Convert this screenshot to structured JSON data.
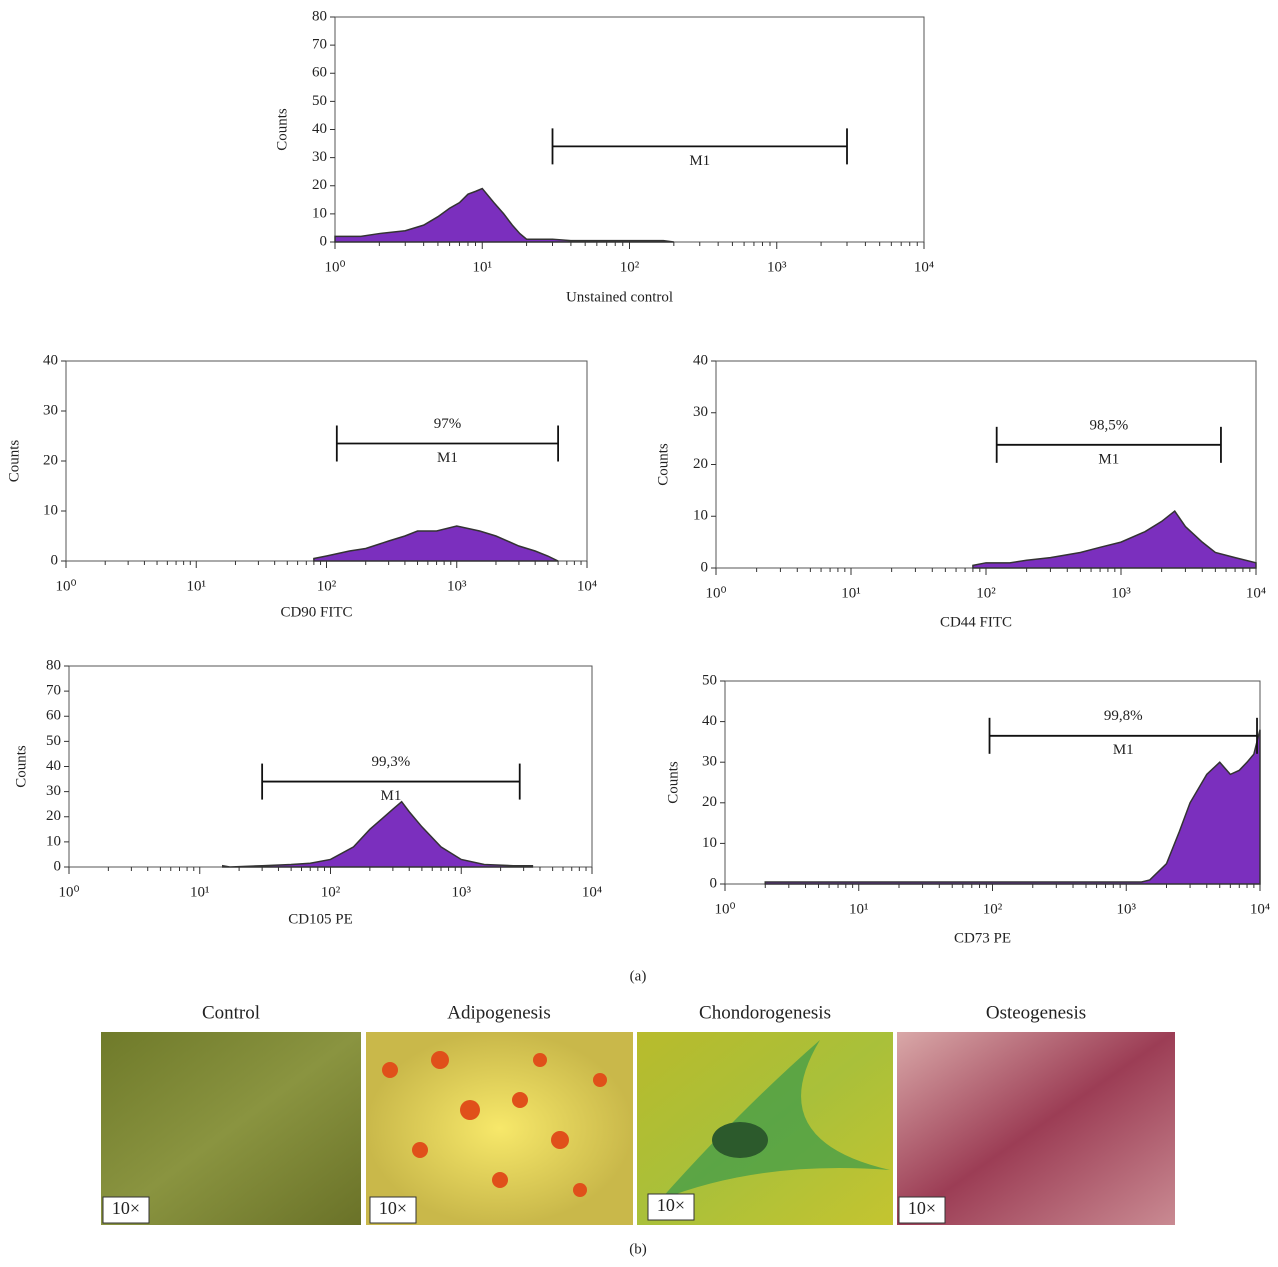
{
  "chart_data": [
    {
      "type": "histogram",
      "xlabel": "Unstained control",
      "ylabel": "Counts",
      "xscale": "log",
      "color": "#7b2fbe",
      "xlim": [
        1,
        10000
      ],
      "xticks": [
        {
          "value": 1,
          "label": "10⁰"
        },
        {
          "value": 10,
          "label": "10¹"
        },
        {
          "value": 100,
          "label": "10²"
        },
        {
          "value": 1000,
          "label": "10³"
        },
        {
          "value": 10000,
          "label": "10⁴"
        }
      ],
      "ylim": [
        0,
        80
      ],
      "yticks": [
        0,
        10,
        20,
        30,
        40,
        50,
        60,
        70,
        80
      ],
      "x": [
        1,
        1.5,
        2,
        3,
        4,
        5,
        6,
        7,
        8,
        9,
        10,
        12,
        14,
        16,
        18,
        20,
        30,
        40,
        70,
        170,
        200
      ],
      "values": [
        2,
        2,
        3,
        4,
        6,
        9,
        12,
        14,
        17,
        18,
        19,
        14,
        10,
        6,
        3,
        1,
        1,
        0.5,
        0.5,
        0.5,
        0
      ],
      "gate": {
        "name": "M1",
        "range": [
          30,
          3000
        ],
        "y": 34
      }
    },
    {
      "type": "histogram",
      "xlabel": "CD90 FITC",
      "ylabel": "Counts",
      "xscale": "log",
      "color": "#7b2fbe",
      "xlim": [
        1,
        10000
      ],
      "xticks": [
        {
          "value": 1,
          "label": "10⁰"
        },
        {
          "value": 10,
          "label": "10¹"
        },
        {
          "value": 100,
          "label": "10²"
        },
        {
          "value": 1000,
          "label": "10³"
        },
        {
          "value": 10000,
          "label": "10⁴"
        }
      ],
      "ylim": [
        0,
        40
      ],
      "yticks": [
        0,
        10,
        20,
        30,
        40
      ],
      "x": [
        80,
        100,
        150,
        200,
        300,
        400,
        500,
        700,
        1000,
        1500,
        2000,
        3000,
        4000,
        5000,
        6000
      ],
      "values": [
        0.5,
        1,
        2,
        2.5,
        4,
        5,
        6,
        6,
        7,
        6,
        5,
        3,
        2,
        1,
        0
      ],
      "gate": {
        "name": "M1",
        "label": "97%",
        "range": [
          120,
          6000
        ],
        "y": 23.5
      }
    },
    {
      "type": "histogram",
      "xlabel": "CD44 FITC",
      "ylabel": "Counts",
      "xscale": "log",
      "color": "#7b2fbe",
      "xlim": [
        1,
        10000
      ],
      "xticks": [
        {
          "value": 1,
          "label": "10⁰"
        },
        {
          "value": 10,
          "label": "10¹"
        },
        {
          "value": 100,
          "label": "10²"
        },
        {
          "value": 1000,
          "label": "10³"
        },
        {
          "value": 10000,
          "label": "10⁴"
        }
      ],
      "ylim": [
        0,
        40
      ],
      "yticks": [
        0,
        10,
        20,
        30,
        40
      ],
      "x": [
        80,
        100,
        150,
        200,
        300,
        500,
        700,
        1000,
        1500,
        2000,
        2500,
        3000,
        4000,
        5000,
        7000,
        10000
      ],
      "values": [
        0.5,
        1,
        1,
        1.5,
        2,
        3,
        4,
        5,
        7,
        9,
        11,
        8,
        5,
        3,
        2,
        1
      ],
      "gate": {
        "name": "M1",
        "label": "98,5%",
        "range": [
          120,
          5500
        ],
        "y": 23.8
      }
    },
    {
      "type": "histogram",
      "xlabel": "CD105 PE",
      "ylabel": "Counts",
      "xscale": "log",
      "color": "#7b2fbe",
      "xlim": [
        1,
        10000
      ],
      "xticks": [
        {
          "value": 1,
          "label": "10⁰"
        },
        {
          "value": 10,
          "label": "10¹"
        },
        {
          "value": 100,
          "label": "10²"
        },
        {
          "value": 1000,
          "label": "10³"
        },
        {
          "value": 10000,
          "label": "10⁴"
        }
      ],
      "ylim": [
        0,
        80
      ],
      "yticks": [
        0,
        10,
        20,
        30,
        40,
        50,
        60,
        70,
        80
      ],
      "x": [
        15,
        17,
        30,
        50,
        70,
        100,
        150,
        200,
        300,
        350,
        400,
        500,
        700,
        1000,
        1500,
        2500,
        3500
      ],
      "values": [
        0.5,
        0,
        0.5,
        1,
        1.5,
        3,
        8,
        15,
        23,
        26,
        22,
        16,
        8,
        3,
        1,
        0.5,
        0.5
      ],
      "gate": {
        "name": "M1",
        "label": "99,3%",
        "range": [
          30,
          2800
        ],
        "y": 34
      }
    },
    {
      "type": "histogram",
      "xlabel": "CD73 PE",
      "ylabel": "Counts",
      "xscale": "log",
      "color": "#7b2fbe",
      "xlim": [
        1,
        10000
      ],
      "xticks": [
        {
          "value": 1,
          "label": "10⁰"
        },
        {
          "value": 10,
          "label": "10¹"
        },
        {
          "value": 100,
          "label": "10²"
        },
        {
          "value": 1000,
          "label": "10³"
        },
        {
          "value": 10000,
          "label": "10⁴"
        }
      ],
      "ylim": [
        0,
        50
      ],
      "yticks": [
        0,
        10,
        20,
        30,
        40,
        50
      ],
      "x": [
        2,
        1000,
        1300,
        1500,
        2000,
        2500,
        3000,
        4000,
        5000,
        6000,
        7000,
        8000,
        9000,
        10000
      ],
      "values": [
        0.5,
        0.5,
        0.5,
        1,
        5,
        13,
        20,
        27,
        30,
        27,
        28,
        30,
        32,
        38
      ],
      "gate": {
        "name": "M1",
        "label": "99,8%",
        "range": [
          95,
          9500
        ],
        "y": 36.5
      }
    }
  ],
  "panel_labels": [
    "(a)",
    "(b)"
  ],
  "images": [
    {
      "title": "Control",
      "magnification": "10×"
    },
    {
      "title": "Adipogenesis",
      "magnification": "10×"
    },
    {
      "title": "Chondorogenesis",
      "magnification": "10×"
    },
    {
      "title": "Osteogenesis",
      "magnification": "10×"
    }
  ]
}
